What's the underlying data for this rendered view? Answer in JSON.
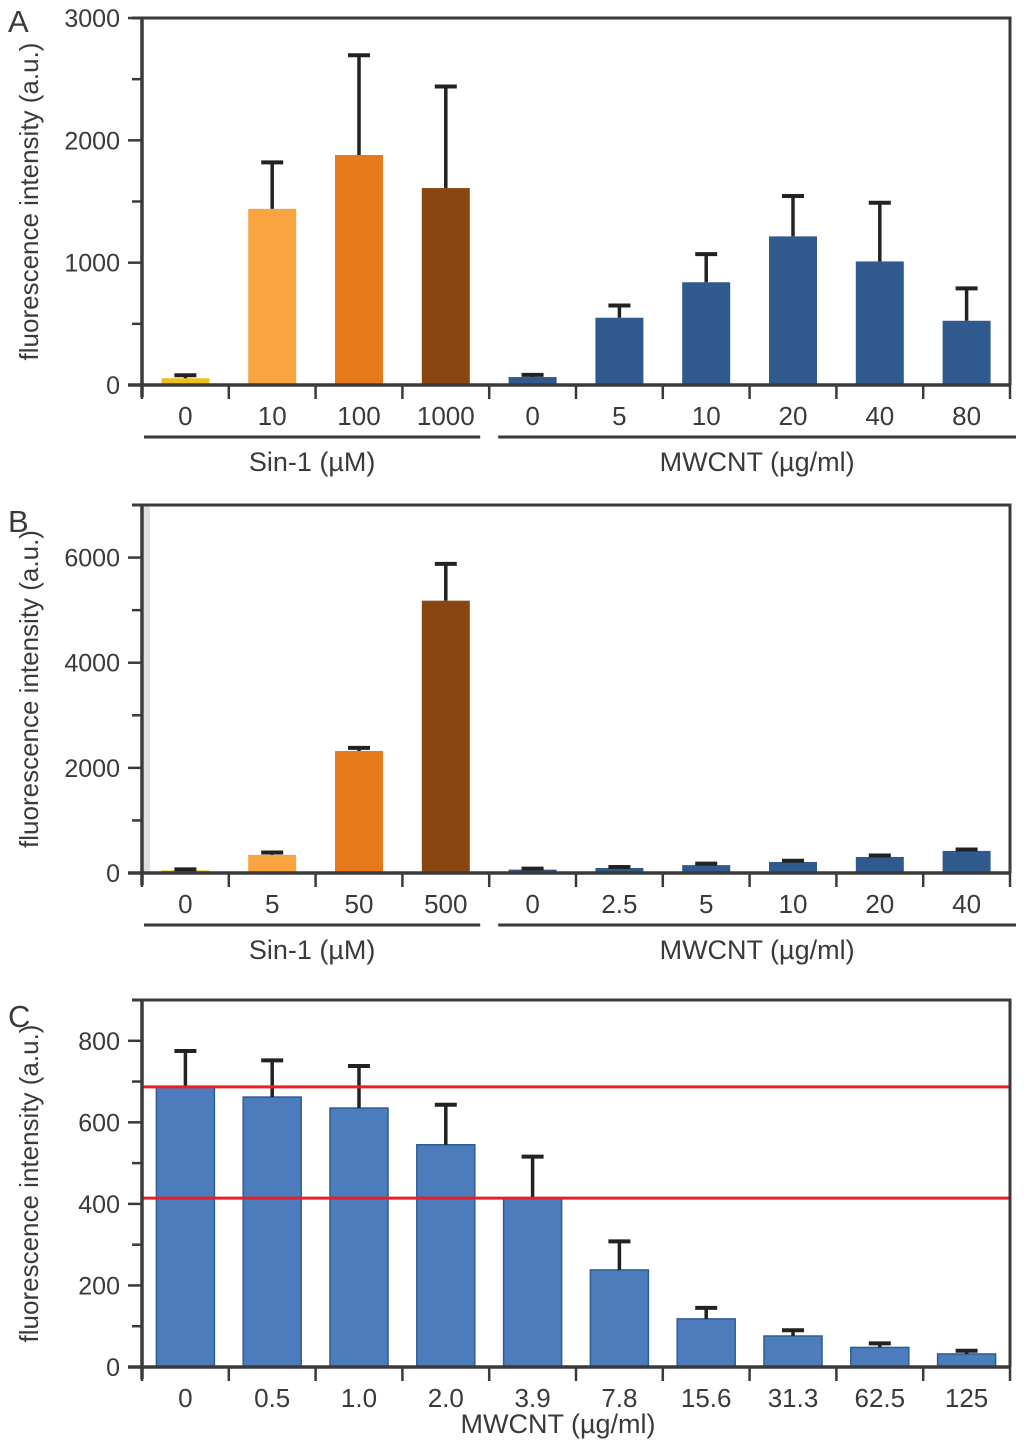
{
  "figure": {
    "description": "Three stacked bar chart panels of fluorescence intensity",
    "panel_letters": [
      "A",
      "B",
      "C"
    ]
  },
  "style": {
    "background": "#ffffff",
    "axis_color": "#3a3a3a",
    "text_color": "#3a3a3a",
    "error_bar_color": "#222222",
    "reference_line_color": "#e81e28",
    "band_artifact_color": "#cccccc"
  },
  "chart_data": [
    {
      "type": "bar",
      "panel": "A",
      "title": "",
      "ylabel": "fluorescence intensity (a.u.)",
      "xlabel": "",
      "ylim": [
        0,
        3000
      ],
      "ytick_major": 1000,
      "ytick_minor": 500,
      "ytick_labels": [
        "0",
        "1000",
        "2000",
        "3000"
      ],
      "grid": false,
      "legend": "none",
      "groups": [
        {
          "label": "Sin-1 (µM)",
          "underline": true,
          "categories": [
            "0",
            "10",
            "100",
            "1000"
          ],
          "values": [
            55,
            1440,
            1880,
            1610
          ],
          "errors": [
            25,
            380,
            815,
            830
          ],
          "bar_colors": [
            "#efc01b",
            "#f9a341",
            "#e6791c",
            "#8a4611"
          ]
        },
        {
          "label": "MWCNT (µg/ml)",
          "underline": true,
          "categories": [
            "0",
            "5",
            "10",
            "20",
            "40",
            "80"
          ],
          "values": [
            65,
            550,
            840,
            1215,
            1010,
            525
          ],
          "errors": [
            18,
            100,
            230,
            330,
            480,
            265
          ],
          "bar_colors": [
            "#30598e",
            "#30598e",
            "#30598e",
            "#30598e",
            "#30598e",
            "#30598e"
          ]
        }
      ]
    },
    {
      "type": "bar",
      "panel": "B",
      "title": "",
      "ylabel": "fluorescence intensity (a.u.)",
      "xlabel": "",
      "ylim": [
        0,
        7000
      ],
      "ytick_major": 2000,
      "ytick_minor": 1000,
      "ytick_labels": [
        "0",
        "2000",
        "4000",
        "6000"
      ],
      "grid": false,
      "legend": "none",
      "groups": [
        {
          "label": "Sin-1 (µM)",
          "underline": true,
          "categories": [
            "0",
            "5",
            "50",
            "500"
          ],
          "values": [
            50,
            345,
            2320,
            5180
          ],
          "errors": [
            20,
            45,
            60,
            700
          ],
          "bar_colors": [
            "#efc01b",
            "#f9a341",
            "#e6791c",
            "#8a4611"
          ]
        },
        {
          "label": "MWCNT (µg/ml)",
          "underline": true,
          "categories": [
            "0",
            "2.5",
            "5",
            "10",
            "20",
            "40"
          ],
          "values": [
            65,
            95,
            150,
            210,
            305,
            420
          ],
          "errors": [
            18,
            18,
            28,
            22,
            28,
            28
          ],
          "bar_colors": [
            "#30598e",
            "#30598e",
            "#30598e",
            "#30598e",
            "#30598e",
            "#30598e"
          ]
        }
      ]
    },
    {
      "type": "bar",
      "panel": "C",
      "title": "",
      "ylabel": "fluorescence intensity (a.u.)",
      "xlabel": "MWCNT (µg/ml)",
      "ylim": [
        0,
        900
      ],
      "ytick_major": 200,
      "ytick_minor": 100,
      "ytick_labels": [
        "0",
        "200",
        "400",
        "600",
        "800"
      ],
      "grid": false,
      "legend": "none",
      "ref_lines": [
        {
          "value": 687,
          "color": "#e81e28"
        },
        {
          "value": 414,
          "color": "#e81e28"
        }
      ],
      "groups": [
        {
          "label": "",
          "underline": false,
          "categories": [
            "0",
            "0.5",
            "1.0",
            "2.0",
            "3.9",
            "7.8",
            "15.6",
            "31.3",
            "62.5",
            "125"
          ],
          "values": [
            687,
            662,
            635,
            545,
            413,
            238,
            118,
            76,
            48,
            32
          ],
          "errors": [
            88,
            90,
            103,
            98,
            103,
            70,
            27,
            14,
            10,
            8
          ],
          "bar_border": "#2f5c96",
          "bar_colors": [
            "#4c7cbb",
            "#4c7cbb",
            "#4c7cbb",
            "#4c7cbb",
            "#4c7cbb",
            "#4c7cbb",
            "#4c7cbb",
            "#4c7cbb",
            "#4c7cbb",
            "#4c7cbb"
          ]
        }
      ]
    }
  ]
}
